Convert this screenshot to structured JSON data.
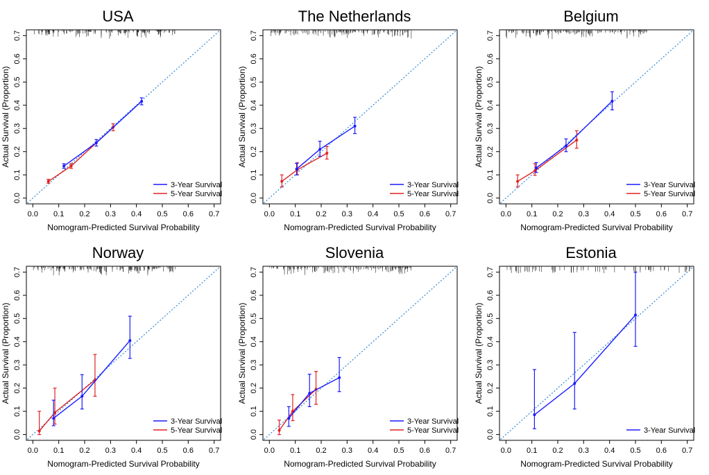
{
  "figure": {
    "colors": {
      "y3": "#1a1aff",
      "y5": "#e02020",
      "diag": "#3a8fd8"
    },
    "xlabel": "Nomogram-Predicted Survival Probability",
    "ylabel": "Actual Survival (Proportion)",
    "xticks": [
      "0.0",
      "0.1",
      "0.2",
      "0.3",
      "0.4",
      "0.5",
      "0.6",
      "0.7"
    ],
    "yticks": [
      "0.0",
      "0.1",
      "0.2",
      "0.3",
      "0.4",
      "0.5",
      "0.6",
      "0.7"
    ]
  },
  "chart_data": [
    {
      "type": "line",
      "title": "USA",
      "xlabel": "Nomogram-Predicted Survival Probability",
      "ylabel": "Actual Survival (Proportion)",
      "xlim": [
        0,
        0.7
      ],
      "ylim": [
        0,
        0.7
      ],
      "legend_position": "bottom-right",
      "series": [
        {
          "name": "3-Year Survival",
          "x": [
            0.12,
            0.245,
            0.42
          ],
          "y": [
            0.138,
            0.238,
            0.417
          ],
          "lower": [
            0.128,
            0.224,
            0.402
          ],
          "upper": [
            0.148,
            0.252,
            0.432
          ]
        },
        {
          "name": "5-Year Survival",
          "x": [
            0.06,
            0.148,
            0.31
          ],
          "y": [
            0.072,
            0.138,
            0.305
          ],
          "lower": [
            0.064,
            0.128,
            0.29
          ],
          "upper": [
            0.081,
            0.148,
            0.32
          ]
        }
      ]
    },
    {
      "type": "line",
      "title": "The Netherlands",
      "xlabel": "Nomogram-Predicted Survival Probability",
      "ylabel": "Actual Survival (Proportion)",
      "xlim": [
        0,
        0.7
      ],
      "ylim": [
        0,
        0.7
      ],
      "legend_position": "bottom-right",
      "series": [
        {
          "name": "3-Year Survival",
          "x": [
            0.105,
            0.195,
            0.33
          ],
          "y": [
            0.125,
            0.21,
            0.31
          ],
          "lower": [
            0.1,
            0.18,
            0.278
          ],
          "upper": [
            0.15,
            0.245,
            0.348
          ]
        },
        {
          "name": "5-Year Survival",
          "x": [
            0.048,
            0.108,
            0.222
          ],
          "y": [
            0.072,
            0.122,
            0.193
          ],
          "lower": [
            0.048,
            0.1,
            0.168
          ],
          "upper": [
            0.1,
            0.152,
            0.222
          ]
        }
      ]
    },
    {
      "type": "line",
      "title": "Belgium",
      "xlabel": "Nomogram-Predicted Survival Probability",
      "ylabel": "Actual Survival (Proportion)",
      "xlim": [
        0,
        0.7
      ],
      "ylim": [
        0,
        0.7
      ],
      "legend_position": "bottom-right",
      "series": [
        {
          "name": "3-Year Survival",
          "x": [
            0.117,
            0.232,
            0.41
          ],
          "y": [
            0.13,
            0.225,
            0.418
          ],
          "lower": [
            0.11,
            0.2,
            0.38
          ],
          "upper": [
            0.153,
            0.255,
            0.458
          ]
        },
        {
          "name": "5-Year Survival",
          "x": [
            0.045,
            0.112,
            0.273
          ],
          "y": [
            0.072,
            0.118,
            0.25
          ],
          "lower": [
            0.048,
            0.098,
            0.215
          ],
          "upper": [
            0.1,
            0.148,
            0.29
          ]
        }
      ]
    },
    {
      "type": "line",
      "title": "Norway",
      "xlabel": "Nomogram-Predicted Survival Probability",
      "ylabel": "Actual Survival (Proportion)",
      "xlim": [
        0,
        0.7
      ],
      "ylim": [
        0,
        0.7
      ],
      "legend_position": "bottom-right",
      "series": [
        {
          "name": "3-Year Survival",
          "x": [
            0.08,
            0.19,
            0.375
          ],
          "y": [
            0.07,
            0.165,
            0.405
          ],
          "lower": [
            0.038,
            0.11,
            0.328
          ],
          "upper": [
            0.148,
            0.258,
            0.51
          ]
        },
        {
          "name": "5-Year Survival",
          "x": [
            0.025,
            0.085,
            0.24
          ],
          "y": [
            0.015,
            0.095,
            0.235
          ],
          "lower": [
            0.0,
            0.045,
            0.165
          ],
          "upper": [
            0.1,
            0.2,
            0.345
          ]
        }
      ]
    },
    {
      "type": "line",
      "title": "Slovenia",
      "xlabel": "Nomogram-Predicted Survival Probability",
      "ylabel": "Actual Survival (Proportion)",
      "xlim": [
        0,
        0.7
      ],
      "ylim": [
        0,
        0.7
      ],
      "legend_position": "bottom-right",
      "series": [
        {
          "name": "3-Year Survival",
          "x": [
            0.075,
            0.155,
            0.27
          ],
          "y": [
            0.07,
            0.178,
            0.245
          ],
          "lower": [
            0.035,
            0.12,
            0.185
          ],
          "upper": [
            0.12,
            0.26,
            0.332
          ]
        },
        {
          "name": "5-Year Survival",
          "x": [
            0.038,
            0.09,
            0.18
          ],
          "y": [
            0.018,
            0.1,
            0.195
          ],
          "lower": [
            0.0,
            0.06,
            0.13
          ],
          "upper": [
            0.062,
            0.172,
            0.272
          ]
        }
      ]
    },
    {
      "type": "line",
      "title": "Estonia",
      "xlabel": "Nomogram-Predicted Survival Probability",
      "ylabel": "Actual Survival (Proportion)",
      "xlim": [
        0,
        0.7
      ],
      "ylim": [
        0,
        0.7
      ],
      "legend_position": "bottom-right",
      "series": [
        {
          "name": "3-Year Survival",
          "x": [
            0.11,
            0.265,
            0.5
          ],
          "y": [
            0.085,
            0.22,
            0.515
          ],
          "lower": [
            0.025,
            0.11,
            0.38
          ],
          "upper": [
            0.28,
            0.44,
            0.7
          ]
        }
      ]
    }
  ]
}
